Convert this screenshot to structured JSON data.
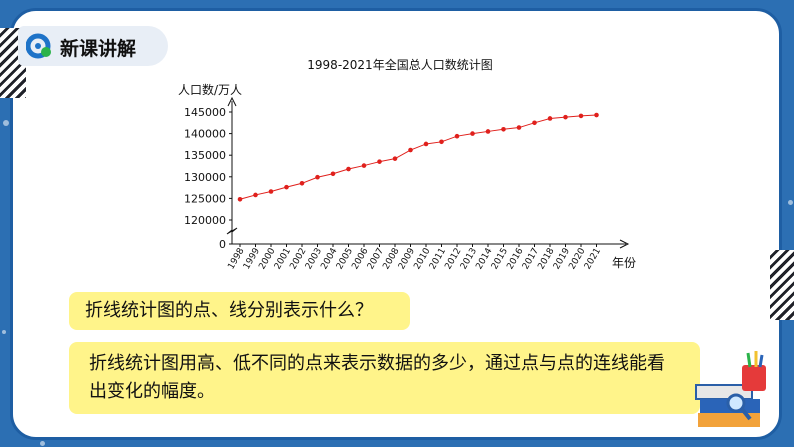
{
  "header": {
    "section_title": "新课讲解"
  },
  "chart_data": {
    "type": "line",
    "title": "1998-2021年全国总人口数统计图",
    "ylabel": "人口数/万人",
    "xlabel": "年份",
    "yticks": [
      "145000",
      "140000",
      "135000",
      "130000",
      "125000",
      "120000",
      "0"
    ],
    "ylim": [
      115000,
      147000
    ],
    "y_axis_break": true,
    "categories": [
      "1998",
      "1999",
      "2000",
      "2001",
      "2002",
      "2003",
      "2004",
      "2005",
      "2006",
      "2007",
      "2008",
      "2009",
      "2010",
      "2011",
      "2012",
      "2013",
      "2014",
      "2015",
      "2016",
      "2017",
      "2018",
      "2019",
      "2020",
      "2021"
    ],
    "series": [
      {
        "color": "#e0201c",
        "values": [
          124800,
          125800,
          126600,
          127600,
          128500,
          129900,
          130700,
          131800,
          132600,
          133500,
          134200,
          136200,
          137600,
          138100,
          139400,
          140000,
          140500,
          141000,
          141400,
          142500,
          143500,
          143800,
          144100,
          144300
        ]
      }
    ],
    "grid": false
  },
  "question": {
    "text": "折线统计图的点、线分别表示什么？"
  },
  "answer": {
    "text": "折线统计图用高、低不同的点来表示数据的多少，通过点与点的连线能看出变化的幅度。"
  }
}
